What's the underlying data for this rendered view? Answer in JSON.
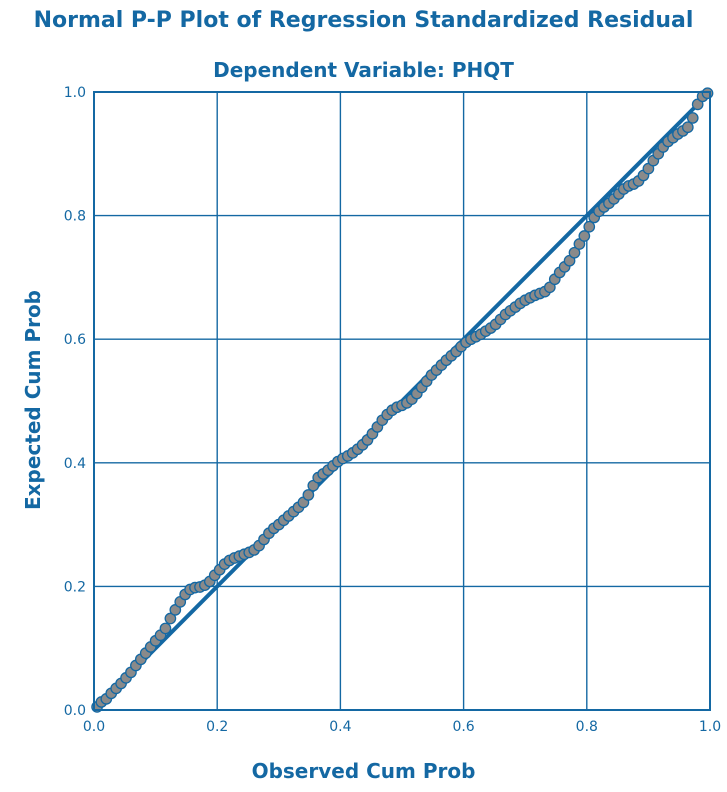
{
  "chart_data": {
    "type": "scatter",
    "title": "Normal P-P Plot of Regression Standardized Residual",
    "subtitle": "Dependent Variable: PHQT",
    "xlabel": "Observed Cum Prob",
    "ylabel": "Expected Cum Prob",
    "xlim": [
      0.0,
      1.0
    ],
    "ylim": [
      0.0,
      1.0
    ],
    "x_ticks": [
      "0.0",
      "0.2",
      "0.4",
      "0.6",
      "0.8",
      "1.0"
    ],
    "y_ticks": [
      "0.0",
      "0.2",
      "0.4",
      "0.6",
      "0.8",
      "1.0"
    ],
    "grid": true,
    "reference_line": {
      "x": [
        0.0,
        1.0
      ],
      "y": [
        0.0,
        1.0
      ]
    },
    "series": [
      {
        "points": [
          [
            0.005,
            0.005
          ],
          [
            0.012,
            0.013
          ],
          [
            0.02,
            0.018
          ],
          [
            0.028,
            0.027
          ],
          [
            0.036,
            0.035
          ],
          [
            0.044,
            0.043
          ],
          [
            0.052,
            0.052
          ],
          [
            0.06,
            0.061
          ],
          [
            0.068,
            0.072
          ],
          [
            0.076,
            0.082
          ],
          [
            0.084,
            0.092
          ],
          [
            0.092,
            0.102
          ],
          [
            0.1,
            0.112
          ],
          [
            0.108,
            0.121
          ],
          [
            0.116,
            0.132
          ],
          [
            0.124,
            0.148
          ],
          [
            0.132,
            0.162
          ],
          [
            0.14,
            0.175
          ],
          [
            0.148,
            0.187
          ],
          [
            0.156,
            0.195
          ],
          [
            0.164,
            0.198
          ],
          [
            0.172,
            0.199
          ],
          [
            0.18,
            0.202
          ],
          [
            0.188,
            0.208
          ],
          [
            0.196,
            0.218
          ],
          [
            0.204,
            0.227
          ],
          [
            0.212,
            0.236
          ],
          [
            0.22,
            0.242
          ],
          [
            0.228,
            0.246
          ],
          [
            0.236,
            0.249
          ],
          [
            0.244,
            0.252
          ],
          [
            0.252,
            0.255
          ],
          [
            0.26,
            0.259
          ],
          [
            0.268,
            0.266
          ],
          [
            0.276,
            0.276
          ],
          [
            0.284,
            0.286
          ],
          [
            0.292,
            0.294
          ],
          [
            0.3,
            0.3
          ],
          [
            0.308,
            0.307
          ],
          [
            0.316,
            0.314
          ],
          [
            0.324,
            0.321
          ],
          [
            0.332,
            0.328
          ],
          [
            0.34,
            0.336
          ],
          [
            0.348,
            0.348
          ],
          [
            0.356,
            0.363
          ],
          [
            0.364,
            0.376
          ],
          [
            0.372,
            0.382
          ],
          [
            0.38,
            0.388
          ],
          [
            0.388,
            0.395
          ],
          [
            0.396,
            0.402
          ],
          [
            0.404,
            0.407
          ],
          [
            0.412,
            0.411
          ],
          [
            0.42,
            0.416
          ],
          [
            0.428,
            0.422
          ],
          [
            0.436,
            0.429
          ],
          [
            0.444,
            0.437
          ],
          [
            0.452,
            0.447
          ],
          [
            0.46,
            0.458
          ],
          [
            0.468,
            0.469
          ],
          [
            0.476,
            0.478
          ],
          [
            0.484,
            0.485
          ],
          [
            0.492,
            0.49
          ],
          [
            0.5,
            0.493
          ],
          [
            0.508,
            0.497
          ],
          [
            0.516,
            0.503
          ],
          [
            0.524,
            0.512
          ],
          [
            0.532,
            0.522
          ],
          [
            0.54,
            0.532
          ],
          [
            0.548,
            0.542
          ],
          [
            0.556,
            0.55
          ],
          [
            0.564,
            0.558
          ],
          [
            0.572,
            0.566
          ],
          [
            0.58,
            0.573
          ],
          [
            0.588,
            0.58
          ],
          [
            0.596,
            0.588
          ],
          [
            0.604,
            0.595
          ],
          [
            0.612,
            0.6
          ],
          [
            0.62,
            0.604
          ],
          [
            0.628,
            0.608
          ],
          [
            0.636,
            0.613
          ],
          [
            0.644,
            0.618
          ],
          [
            0.652,
            0.624
          ],
          [
            0.66,
            0.632
          ],
          [
            0.668,
            0.64
          ],
          [
            0.676,
            0.646
          ],
          [
            0.684,
            0.652
          ],
          [
            0.692,
            0.658
          ],
          [
            0.7,
            0.663
          ],
          [
            0.708,
            0.667
          ],
          [
            0.716,
            0.671
          ],
          [
            0.724,
            0.674
          ],
          [
            0.732,
            0.677
          ],
          [
            0.74,
            0.684
          ],
          [
            0.748,
            0.697
          ],
          [
            0.756,
            0.708
          ],
          [
            0.764,
            0.717
          ],
          [
            0.772,
            0.727
          ],
          [
            0.78,
            0.74
          ],
          [
            0.788,
            0.754
          ],
          [
            0.796,
            0.767
          ],
          [
            0.804,
            0.782
          ],
          [
            0.812,
            0.797
          ],
          [
            0.82,
            0.807
          ],
          [
            0.828,
            0.814
          ],
          [
            0.836,
            0.82
          ],
          [
            0.844,
            0.827
          ],
          [
            0.852,
            0.835
          ],
          [
            0.86,
            0.843
          ],
          [
            0.868,
            0.848
          ],
          [
            0.876,
            0.851
          ],
          [
            0.884,
            0.856
          ],
          [
            0.892,
            0.865
          ],
          [
            0.9,
            0.876
          ],
          [
            0.908,
            0.889
          ],
          [
            0.916,
            0.9
          ],
          [
            0.924,
            0.911
          ],
          [
            0.932,
            0.92
          ],
          [
            0.94,
            0.926
          ],
          [
            0.948,
            0.932
          ],
          [
            0.956,
            0.937
          ],
          [
            0.964,
            0.943
          ],
          [
            0.972,
            0.958
          ],
          [
            0.98,
            0.98
          ],
          [
            0.988,
            0.993
          ],
          [
            0.996,
            0.998
          ]
        ]
      }
    ]
  },
  "colors": {
    "axis": "#1468a3",
    "grid": "#1468a3",
    "reference_line": "#1468a3",
    "marker_fill": "#8a8a8a",
    "marker_stroke": "#1468a3"
  }
}
